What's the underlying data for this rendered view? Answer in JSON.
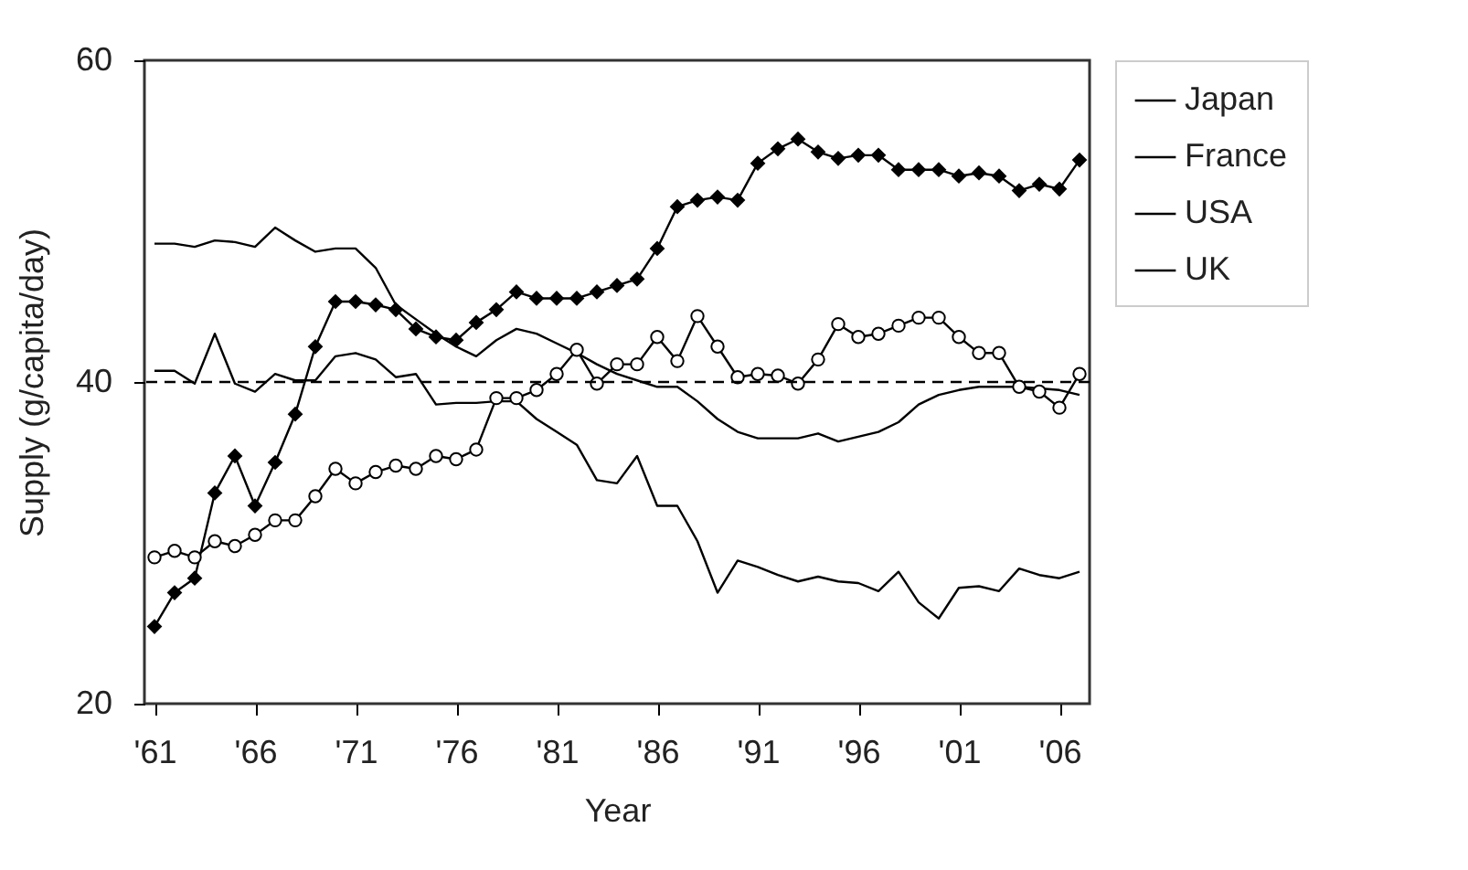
{
  "chart_data": {
    "type": "line",
    "xlabel": "Year",
    "ylabel": "Supply (g/capita/day)",
    "x": [
      1961,
      1962,
      1963,
      1964,
      1965,
      1966,
      1967,
      1968,
      1969,
      1970,
      1971,
      1972,
      1973,
      1974,
      1975,
      1976,
      1977,
      1978,
      1979,
      1980,
      1981,
      1982,
      1983,
      1984,
      1985,
      1986,
      1987,
      1988,
      1989,
      1990,
      1991,
      1992,
      1993,
      1994,
      1995,
      1996,
      1997,
      1998,
      1999,
      2000,
      2001,
      2002,
      2003,
      2004,
      2005,
      2006,
      2007
    ],
    "series": [
      {
        "name": "Japan",
        "color": "#000000",
        "marker": "diamond",
        "values": [
          24.8,
          26.9,
          27.8,
          33.1,
          35.4,
          32.3,
          35.0,
          38.0,
          42.2,
          45.0,
          45.0,
          44.8,
          44.5,
          43.3,
          42.8,
          42.6,
          43.7,
          44.5,
          45.6,
          45.2,
          45.2,
          45.2,
          45.6,
          46.0,
          46.4,
          48.3,
          50.9,
          51.3,
          51.5,
          51.3,
          53.6,
          54.5,
          55.1,
          54.3,
          53.9,
          54.1,
          54.1,
          53.2,
          53.2,
          53.2,
          52.8,
          53.0,
          52.8,
          51.9,
          52.3,
          52.0,
          53.8
        ]
      },
      {
        "name": "France",
        "color": "#000000",
        "marker": "circle",
        "values": [
          29.1,
          29.5,
          29.1,
          30.1,
          29.8,
          30.5,
          31.4,
          31.4,
          32.9,
          34.6,
          33.7,
          34.4,
          34.8,
          34.6,
          35.4,
          35.2,
          35.8,
          39.0,
          39.0,
          39.5,
          40.5,
          42.0,
          39.9,
          41.1,
          41.1,
          42.8,
          41.3,
          44.1,
          42.2,
          40.3,
          40.5,
          40.4,
          39.9,
          41.4,
          43.6,
          42.8,
          43.0,
          43.5,
          44.0,
          44.0,
          42.8,
          41.8,
          41.8,
          39.7,
          39.4,
          38.4,
          40.5
        ]
      },
      {
        "name": "USA",
        "color": "#000000",
        "marker": "none",
        "values": [
          48.6,
          48.6,
          48.4,
          48.8,
          48.7,
          48.4,
          49.6,
          48.8,
          48.1,
          48.3,
          48.3,
          47.1,
          44.8,
          43.9,
          43.0,
          42.2,
          41.6,
          42.6,
          43.3,
          43.0,
          42.4,
          41.8,
          41.1,
          40.5,
          40.1,
          39.7,
          39.7,
          38.8,
          37.7,
          36.9,
          36.5,
          36.5,
          36.5,
          36.8,
          36.3,
          36.6,
          36.9,
          37.5,
          38.6,
          39.2,
          39.5,
          39.7,
          39.7,
          39.7,
          39.6,
          39.5,
          39.2
        ]
      },
      {
        "name": "UK",
        "color": "#000000",
        "marker": "none",
        "values": [
          40.7,
          40.7,
          39.9,
          43.0,
          39.9,
          39.4,
          40.5,
          40.1,
          40.1,
          41.6,
          41.8,
          41.4,
          40.3,
          40.5,
          38.6,
          38.7,
          38.7,
          38.8,
          38.8,
          37.7,
          36.9,
          36.1,
          33.9,
          33.7,
          35.4,
          32.3,
          32.3,
          30.1,
          26.9,
          28.9,
          28.5,
          28.0,
          27.6,
          27.9,
          27.6,
          27.5,
          27.0,
          28.2,
          26.3,
          25.3,
          27.2,
          27.3,
          27.0,
          28.4,
          28.0,
          27.8,
          28.2
        ]
      }
    ],
    "xlim": [
      1960.5,
      2007.5
    ],
    "xticks": [
      {
        "value": 1961,
        "label": "'61"
      },
      {
        "value": 1966,
        "label": "'66"
      },
      {
        "value": 1971,
        "label": "'71"
      },
      {
        "value": 1976,
        "label": "'76"
      },
      {
        "value": 1981,
        "label": "'81"
      },
      {
        "value": 1986,
        "label": "'86"
      },
      {
        "value": 1991,
        "label": "'91"
      },
      {
        "value": 1996,
        "label": "'96"
      },
      {
        "value": 2001,
        "label": "'01"
      },
      {
        "value": 2006,
        "label": "'06"
      }
    ],
    "ylim": [
      20,
      60
    ],
    "yticks": [
      20,
      40,
      60
    ],
    "ref_lines": [
      {
        "axis": "y",
        "value": 40,
        "line_style": "dashed"
      }
    ],
    "legend": "right",
    "grid": false
  }
}
